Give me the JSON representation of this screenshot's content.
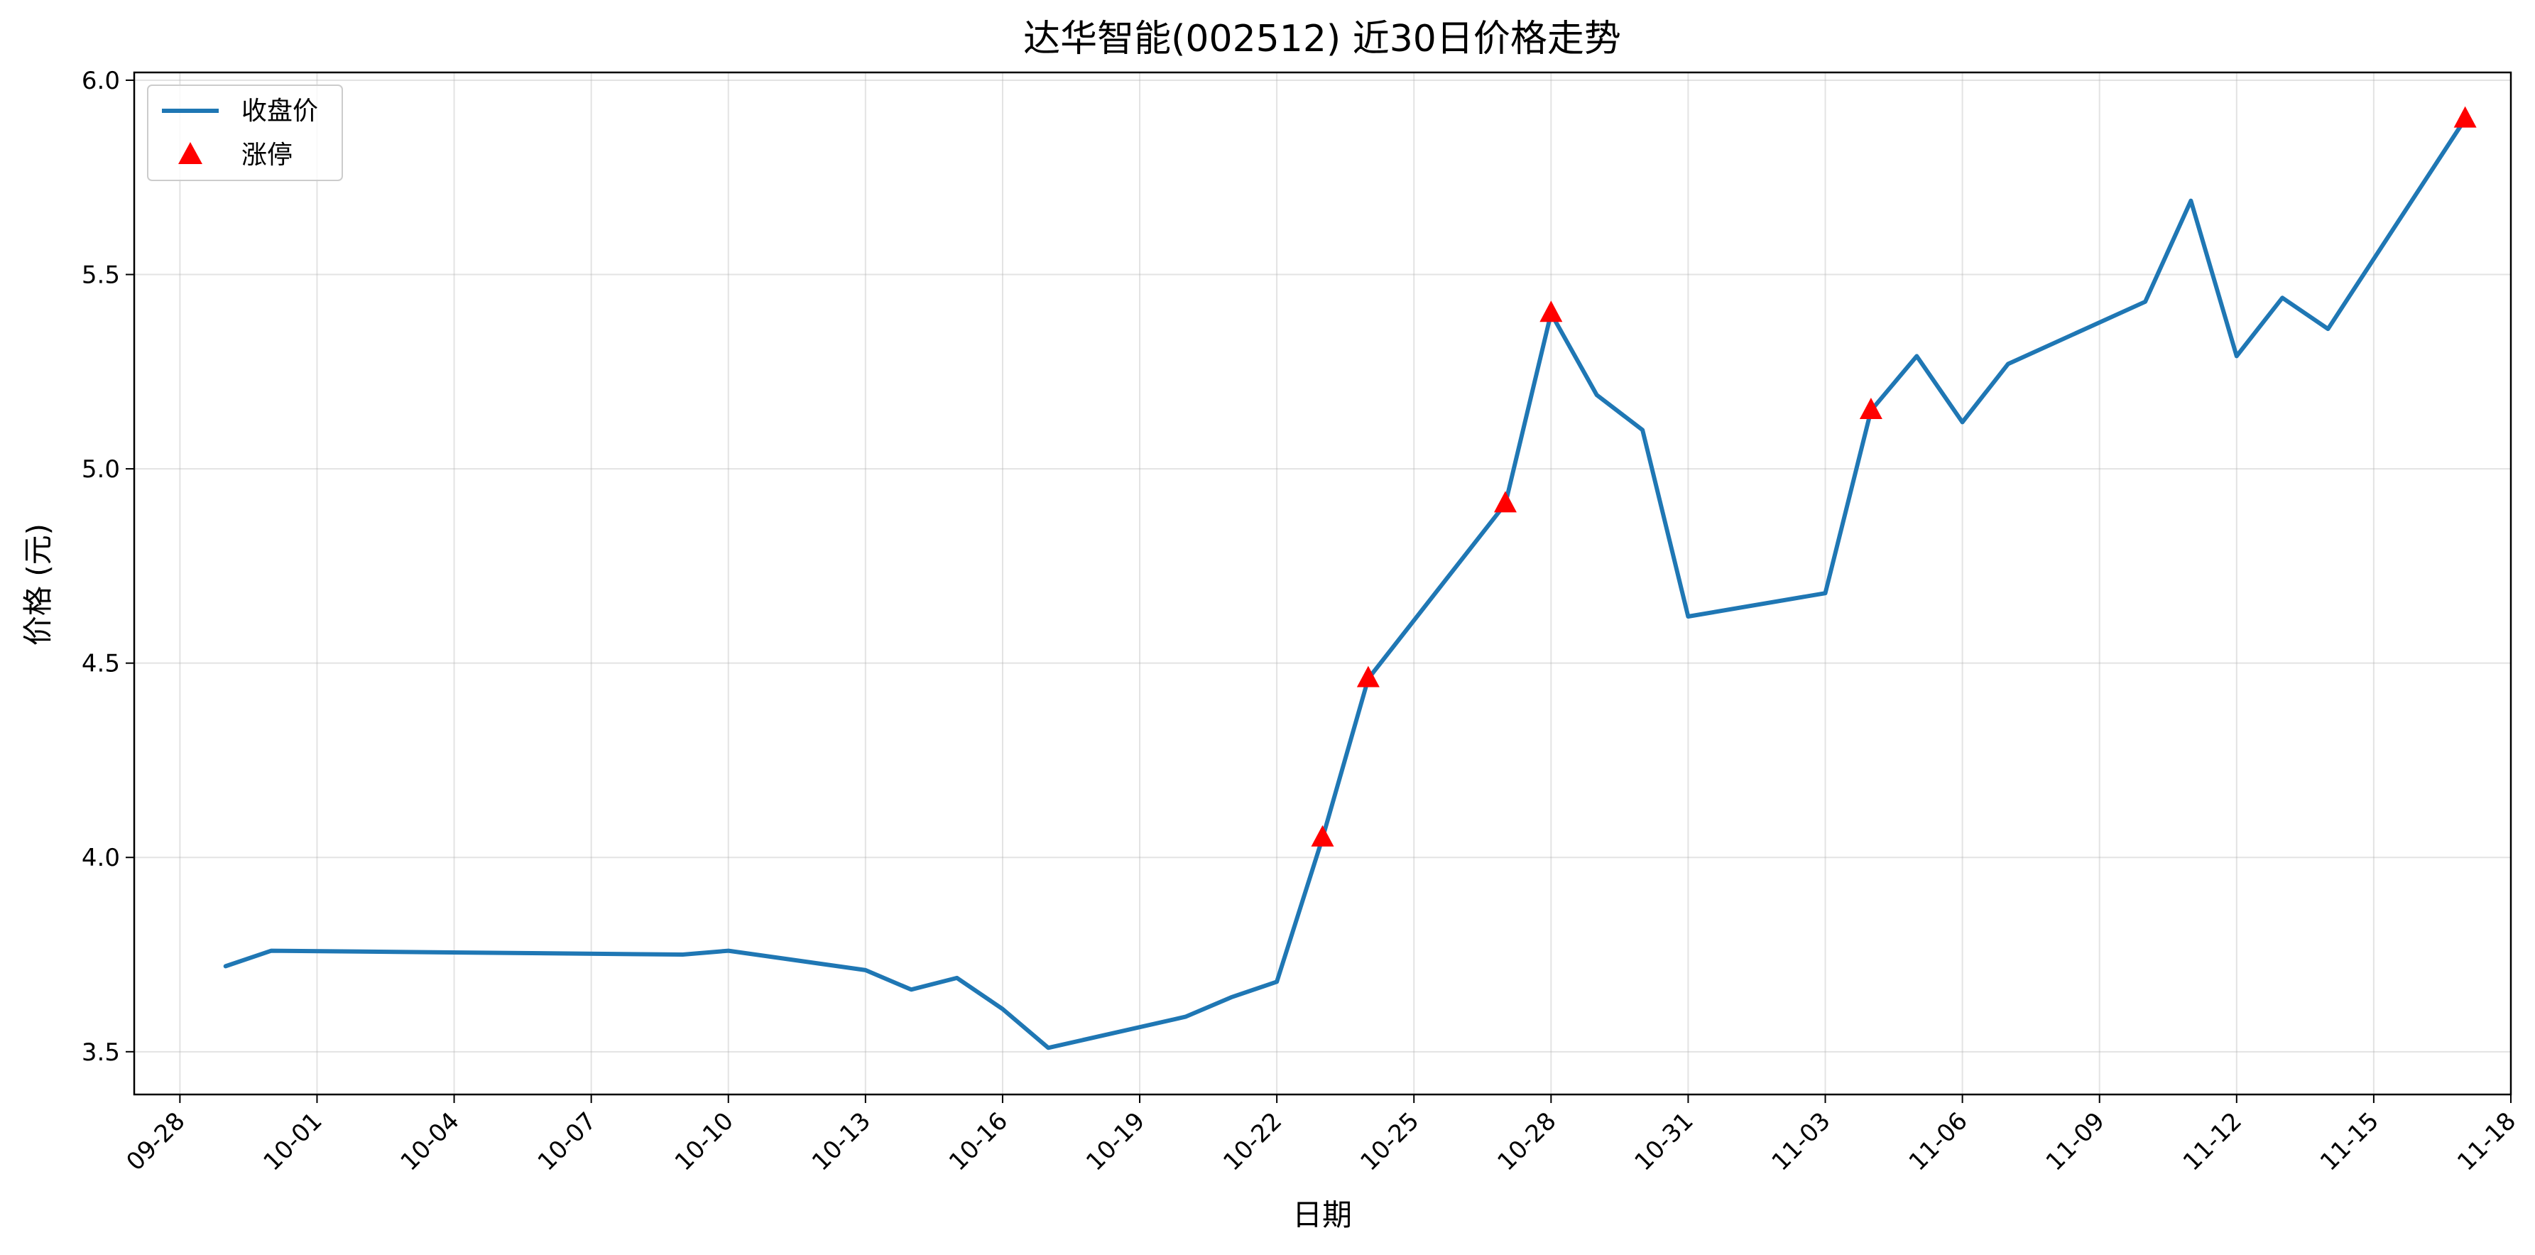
{
  "chart_data": {
    "type": "line",
    "title": "达华智能(002512) 近30日价格走势",
    "xlabel": "日期",
    "ylabel": "价格 (元)",
    "x_ticks": [
      "09-28",
      "10-01",
      "10-04",
      "10-07",
      "10-10",
      "10-13",
      "10-16",
      "10-19",
      "10-22",
      "10-25",
      "10-28",
      "10-31",
      "11-03",
      "11-06",
      "11-09",
      "11-12",
      "11-15",
      "11-18"
    ],
    "y_ticks": [
      "3.5",
      "4.0",
      "4.5",
      "5.0",
      "5.5",
      "6.0"
    ],
    "ylim": [
      3.39,
      6.02
    ],
    "xlim": [
      "09-27",
      "11-18"
    ],
    "grid": true,
    "legend_position": "top-left",
    "series": [
      {
        "name": "收盘价",
        "color": "#1f77b4",
        "points": [
          [
            "09-29",
            3.72
          ],
          [
            "09-30",
            3.76
          ],
          [
            "10-09",
            3.75
          ],
          [
            "10-10",
            3.76
          ],
          [
            "10-13",
            3.71
          ],
          [
            "10-14",
            3.66
          ],
          [
            "10-15",
            3.69
          ],
          [
            "10-16",
            3.61
          ],
          [
            "10-17",
            3.51
          ],
          [
            "10-20",
            3.59
          ],
          [
            "10-21",
            3.64
          ],
          [
            "10-22",
            3.68
          ],
          [
            "10-23",
            4.05
          ],
          [
            "10-24",
            4.46
          ],
          [
            "10-27",
            4.91
          ],
          [
            "10-28",
            5.4
          ],
          [
            "10-29",
            5.19
          ],
          [
            "10-30",
            5.1
          ],
          [
            "10-31",
            4.62
          ],
          [
            "11-03",
            4.68
          ],
          [
            "11-04",
            5.15
          ],
          [
            "11-05",
            5.29
          ],
          [
            "11-06",
            5.12
          ],
          [
            "11-07",
            5.27
          ],
          [
            "11-10",
            5.43
          ],
          [
            "11-11",
            5.69
          ],
          [
            "11-12",
            5.29
          ],
          [
            "11-13",
            5.44
          ],
          [
            "11-14",
            5.36
          ],
          [
            "11-17",
            5.9
          ]
        ]
      },
      {
        "name": "涨停",
        "color": "#ff0000",
        "marker": "triangle",
        "points": [
          [
            "10-23",
            4.05
          ],
          [
            "10-24",
            4.46
          ],
          [
            "10-27",
            4.91
          ],
          [
            "10-28",
            5.4
          ],
          [
            "11-04",
            5.15
          ],
          [
            "11-17",
            5.9
          ]
        ]
      }
    ]
  }
}
